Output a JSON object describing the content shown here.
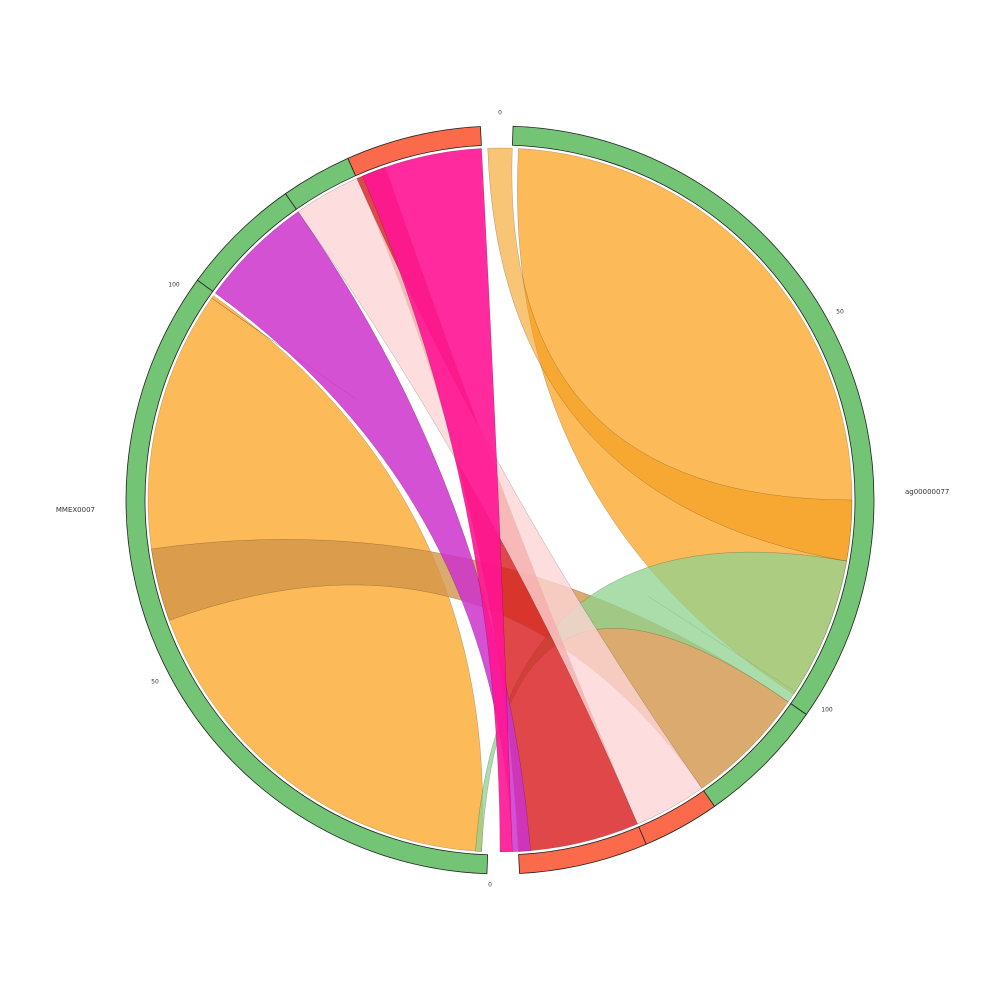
{
  "sectors": [
    {
      "label": "ag00000077"
    },
    {
      "label": "MMEX0007"
    }
  ],
  "ticks": [
    "0",
    "50",
    "100",
    "0",
    "50",
    "100"
  ]
}
